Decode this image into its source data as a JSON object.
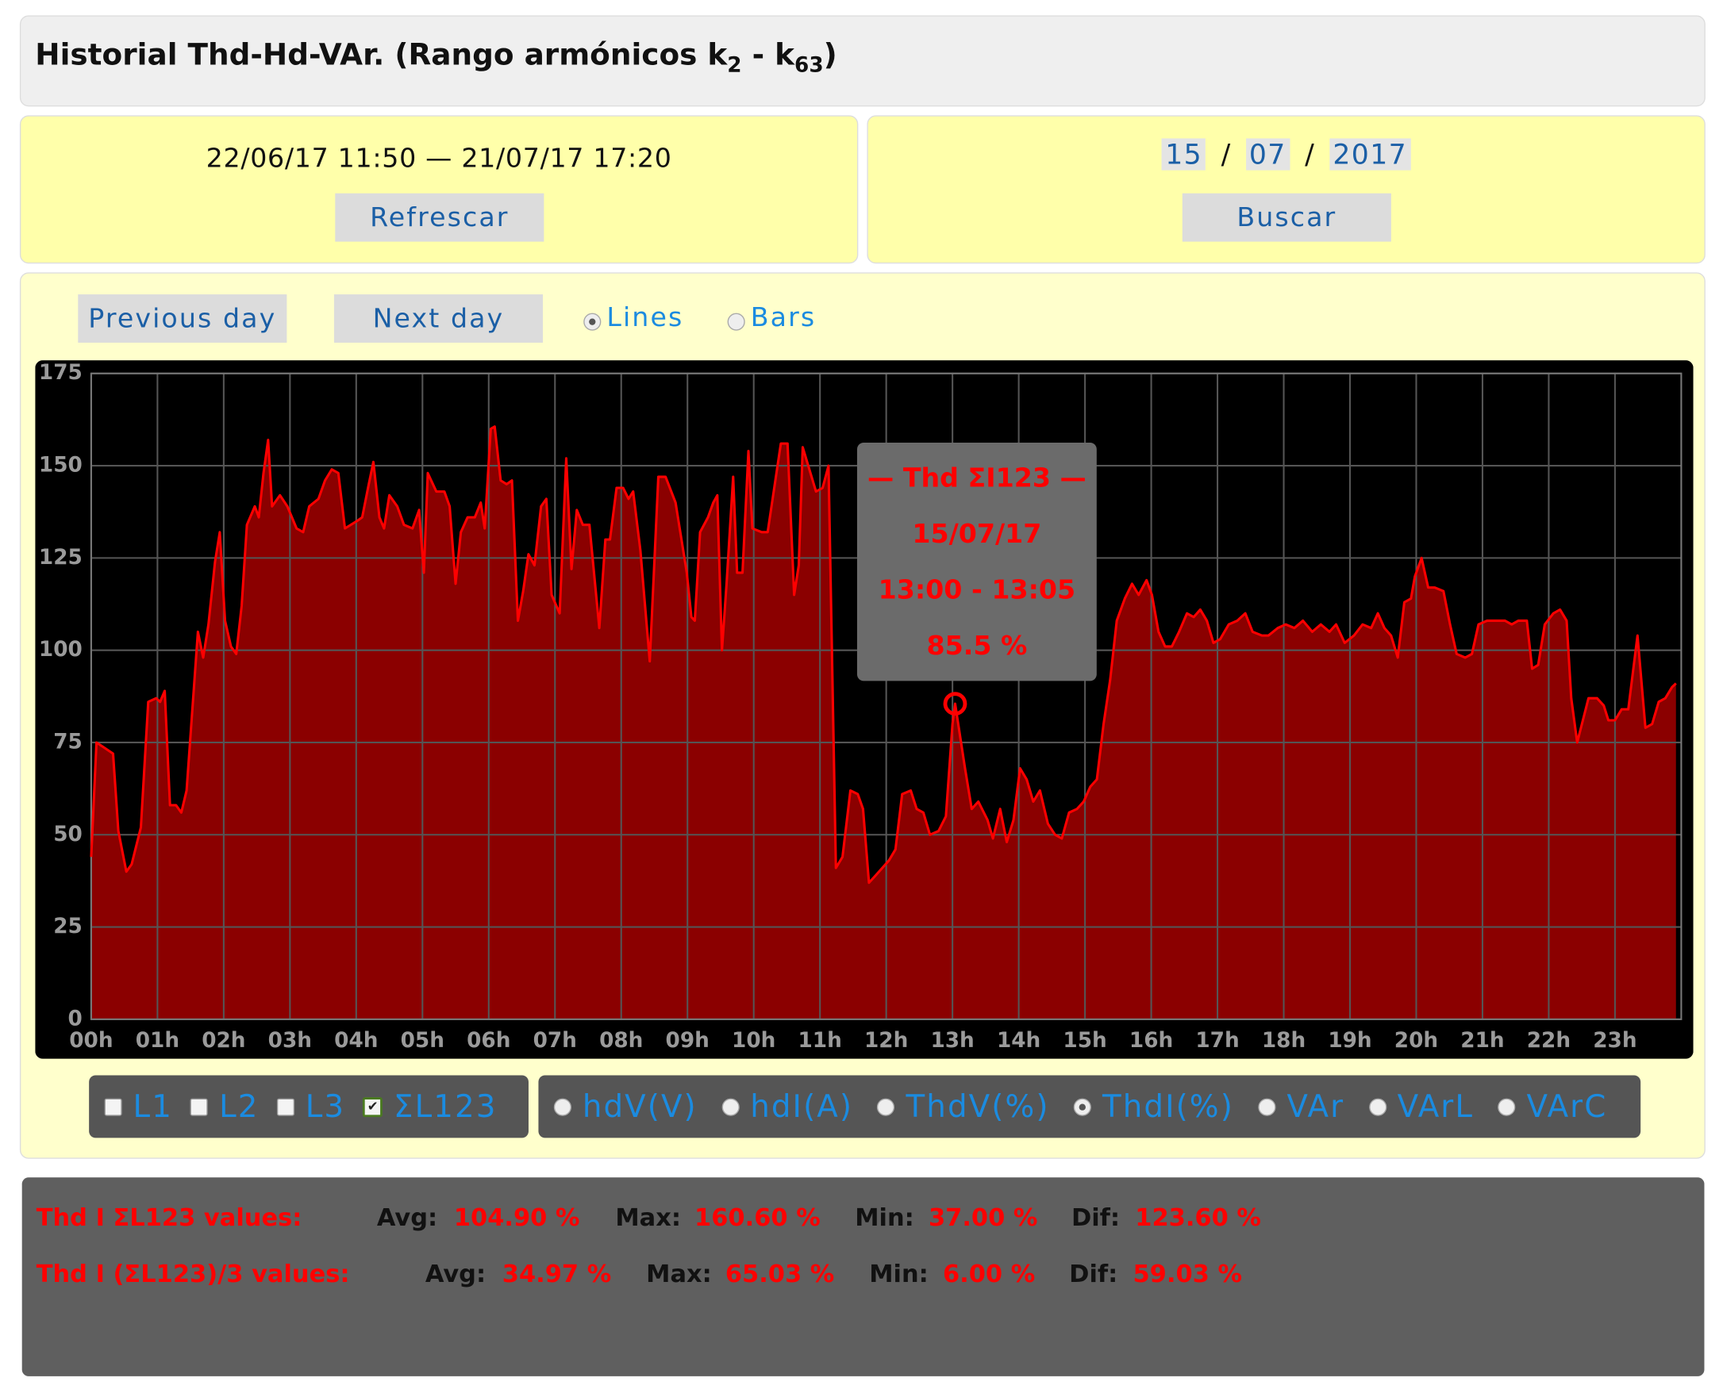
{
  "header": {
    "title_prefix": "Historial Thd-Hd-VAr. (Rango armónicos k",
    "title_sub1": "2",
    "title_mid": " - k",
    "title_sub2": "63",
    "title_suffix": ")"
  },
  "range": {
    "text": "22/06/17 11:50 — 21/07/17 17:20",
    "button": "Refrescar"
  },
  "date": {
    "day": "15",
    "sep1": "/",
    "month": "07",
    "sep2": "/",
    "year": "2017",
    "button": "Buscar"
  },
  "controls": {
    "previous": "Previous day",
    "next": "Next day",
    "lines": "Lines",
    "bars": "Bars"
  },
  "chart_data": {
    "type": "area",
    "color": "#ff0000",
    "fill_color": "#8b0000",
    "grid": true,
    "xlim": [
      0,
      24
    ],
    "ylim": [
      0,
      175
    ],
    "yticks": [
      0,
      25,
      50,
      75,
      100,
      125,
      150,
      175
    ],
    "xticks": [
      {
        "value": 0,
        "label": "00h"
      },
      {
        "value": 1,
        "label": "01h"
      },
      {
        "value": 2,
        "label": "02h"
      },
      {
        "value": 3,
        "label": "03h"
      },
      {
        "value": 4,
        "label": "04h"
      },
      {
        "value": 5,
        "label": "05h"
      },
      {
        "value": 6,
        "label": "06h"
      },
      {
        "value": 7,
        "label": "07h"
      },
      {
        "value": 8,
        "label": "08h"
      },
      {
        "value": 9,
        "label": "09h"
      },
      {
        "value": 10,
        "label": "10h"
      },
      {
        "value": 11,
        "label": "11h"
      },
      {
        "value": 12,
        "label": "12h"
      },
      {
        "value": 13,
        "label": "13h"
      },
      {
        "value": 14,
        "label": "14h"
      },
      {
        "value": 15,
        "label": "15h"
      },
      {
        "value": 16,
        "label": "16h"
      },
      {
        "value": 17,
        "label": "17h"
      },
      {
        "value": 18,
        "label": "18h"
      },
      {
        "value": 19,
        "label": "19h"
      },
      {
        "value": 20,
        "label": "20h"
      },
      {
        "value": 21,
        "label": "21h"
      },
      {
        "value": 22,
        "label": "22h"
      },
      {
        "value": 23,
        "label": "23h"
      }
    ],
    "x": [
      0.0,
      0.08,
      0.33,
      0.41,
      0.53,
      0.61,
      0.75,
      0.86,
      0.98,
      1.04,
      1.11,
      1.19,
      1.28,
      1.36,
      1.44,
      1.61,
      1.69,
      1.77,
      1.87,
      1.94,
      2.02,
      2.11,
      2.19,
      2.27,
      2.35,
      2.47,
      2.53,
      2.6,
      2.67,
      2.73,
      2.85,
      2.96,
      3.1,
      3.2,
      3.29,
      3.43,
      3.53,
      3.63,
      3.73,
      3.83,
      4.01,
      4.09,
      4.19,
      4.26,
      4.35,
      4.42,
      4.5,
      4.62,
      4.72,
      4.85,
      4.95,
      5.02,
      5.08,
      5.21,
      5.33,
      5.41,
      5.5,
      5.58,
      5.68,
      5.79,
      5.88,
      5.94,
      6.03,
      6.09,
      6.18,
      6.27,
      6.35,
      6.44,
      6.52,
      6.6,
      6.69,
      6.79,
      6.87,
      6.95,
      7.07,
      7.17,
      7.25,
      7.33,
      7.42,
      7.52,
      7.67,
      7.76,
      7.83,
      7.93,
      8.03,
      8.11,
      8.18,
      8.29,
      8.43,
      8.56,
      8.67,
      8.82,
      8.99,
      9.06,
      9.11,
      9.19,
      9.31,
      9.39,
      9.45,
      9.52,
      9.59,
      9.69,
      9.75,
      9.83,
      9.92,
      9.98,
      10.12,
      10.21,
      10.41,
      10.51,
      10.61,
      10.68,
      10.74,
      10.94,
      11.04,
      11.13,
      11.24,
      11.34,
      11.46,
      11.57,
      11.65,
      11.74,
      11.84,
      11.94,
      12.04,
      12.14,
      12.24,
      12.37,
      12.46,
      12.56,
      12.66,
      12.79,
      12.9,
      13.0,
      13.04,
      13.19,
      13.29,
      13.39,
      13.53,
      13.61,
      13.72,
      13.82,
      13.92,
      14.02,
      14.12,
      14.22,
      14.32,
      14.44,
      14.55,
      14.65,
      14.76,
      14.88,
      14.98,
      15.08,
      15.18,
      15.28,
      15.38,
      15.48,
      15.6,
      15.71,
      15.81,
      15.93,
      16.01,
      16.11,
      16.21,
      16.31,
      16.42,
      16.54,
      16.64,
      16.74,
      16.84,
      16.94,
      17.04,
      17.17,
      17.3,
      17.42,
      17.53,
      17.67,
      17.77,
      17.91,
      18.03,
      18.16,
      18.29,
      18.43,
      18.56,
      18.69,
      18.79,
      18.92,
      19.06,
      19.19,
      19.32,
      19.42,
      19.52,
      19.62,
      19.72,
      19.82,
      19.92,
      19.98,
      20.08,
      20.18,
      20.28,
      20.41,
      20.51,
      20.61,
      20.74,
      20.84,
      20.94,
      21.07,
      21.21,
      21.34,
      21.44,
      21.54,
      21.67,
      21.75,
      21.84,
      21.94,
      22.07,
      22.17,
      22.27,
      22.34,
      22.43,
      22.6,
      22.73,
      22.83,
      22.9,
      23.0,
      23.1,
      23.2,
      23.34,
      23.46,
      23.56,
      23.66,
      23.76,
      23.86,
      23.92
    ],
    "values": [
      44,
      75,
      72,
      51,
      40,
      42,
      52,
      86,
      87,
      86,
      89,
      58,
      58,
      56,
      62,
      105,
      98,
      107,
      124,
      132,
      108,
      101,
      99,
      112,
      134,
      139,
      136,
      148,
      157,
      139,
      142,
      139,
      133,
      132,
      139,
      141,
      146,
      149,
      148,
      133,
      135,
      136,
      145,
      151,
      136,
      133,
      142,
      139,
      134,
      133,
      138,
      121,
      148,
      143,
      143,
      139,
      118,
      132,
      136,
      136,
      140,
      133,
      160,
      160.6,
      146,
      145,
      146,
      108,
      116,
      126,
      123,
      139,
      141,
      115,
      110,
      152,
      122,
      138,
      134,
      134,
      106,
      130,
      130,
      144,
      144,
      141,
      143,
      127,
      97,
      147,
      147,
      140,
      121,
      109,
      108,
      132,
      136,
      140,
      142,
      100,
      118,
      147,
      121,
      121,
      154,
      133,
      132,
      132,
      156,
      156,
      115,
      123,
      155,
      143,
      144,
      150,
      41,
      44,
      62,
      61,
      57,
      37,
      39,
      41,
      43,
      46,
      61,
      62,
      57,
      56,
      50,
      51,
      55,
      80,
      85.5,
      68,
      57,
      59,
      54,
      49,
      57,
      48,
      54,
      68,
      65,
      59,
      62,
      53,
      50,
      49,
      56,
      57,
      59,
      63,
      65,
      80,
      92,
      108,
      114,
      118,
      115,
      119,
      115,
      105,
      101,
      101,
      105,
      110,
      109,
      111,
      108,
      102,
      103,
      107,
      108,
      110,
      105,
      104,
      104,
      106,
      107,
      106,
      108,
      105,
      107,
      105,
      107,
      102,
      104,
      107,
      106,
      110,
      106,
      104,
      98,
      113,
      114,
      120,
      125,
      117,
      117,
      116,
      107,
      99,
      98,
      99,
      107,
      108,
      108,
      108,
      107,
      108,
      108,
      95,
      96,
      107,
      110,
      111,
      108,
      87,
      75,
      87,
      87,
      85,
      81,
      81,
      84,
      84,
      104,
      79,
      80,
      86,
      87,
      90,
      91
    ],
    "tooltip": {
      "title": "— Thd ΣI123 —",
      "date": "15/07/17",
      "time": "13:00 - 13:05",
      "value": "85.5 %"
    }
  },
  "phases": [
    "L1",
    "L2",
    "L3",
    "ΣL123"
  ],
  "measures": [
    "hdV(V)",
    "hdI(A)",
    "ThdV(%)",
    "ThdI(%)",
    "VAr",
    "VArL",
    "VArC"
  ],
  "stats": [
    {
      "label": "Thd I ΣL123 values:",
      "avg_label": "Avg:",
      "avg": "104.90 %",
      "max_label": "Max:",
      "max": "160.60 %",
      "min_label": "Min:",
      "min": "37.00 %",
      "dif_label": "Dif:",
      "dif": "123.60 %"
    },
    {
      "label": "Thd I (ΣL123)/3 values:",
      "avg_label": "Avg:",
      "avg": "34.97 %",
      "max_label": "Max:",
      "max": "65.03 %",
      "min_label": "Min:",
      "min": "6.00 %",
      "dif_label": "Dif:",
      "dif": "59.03 %"
    }
  ]
}
